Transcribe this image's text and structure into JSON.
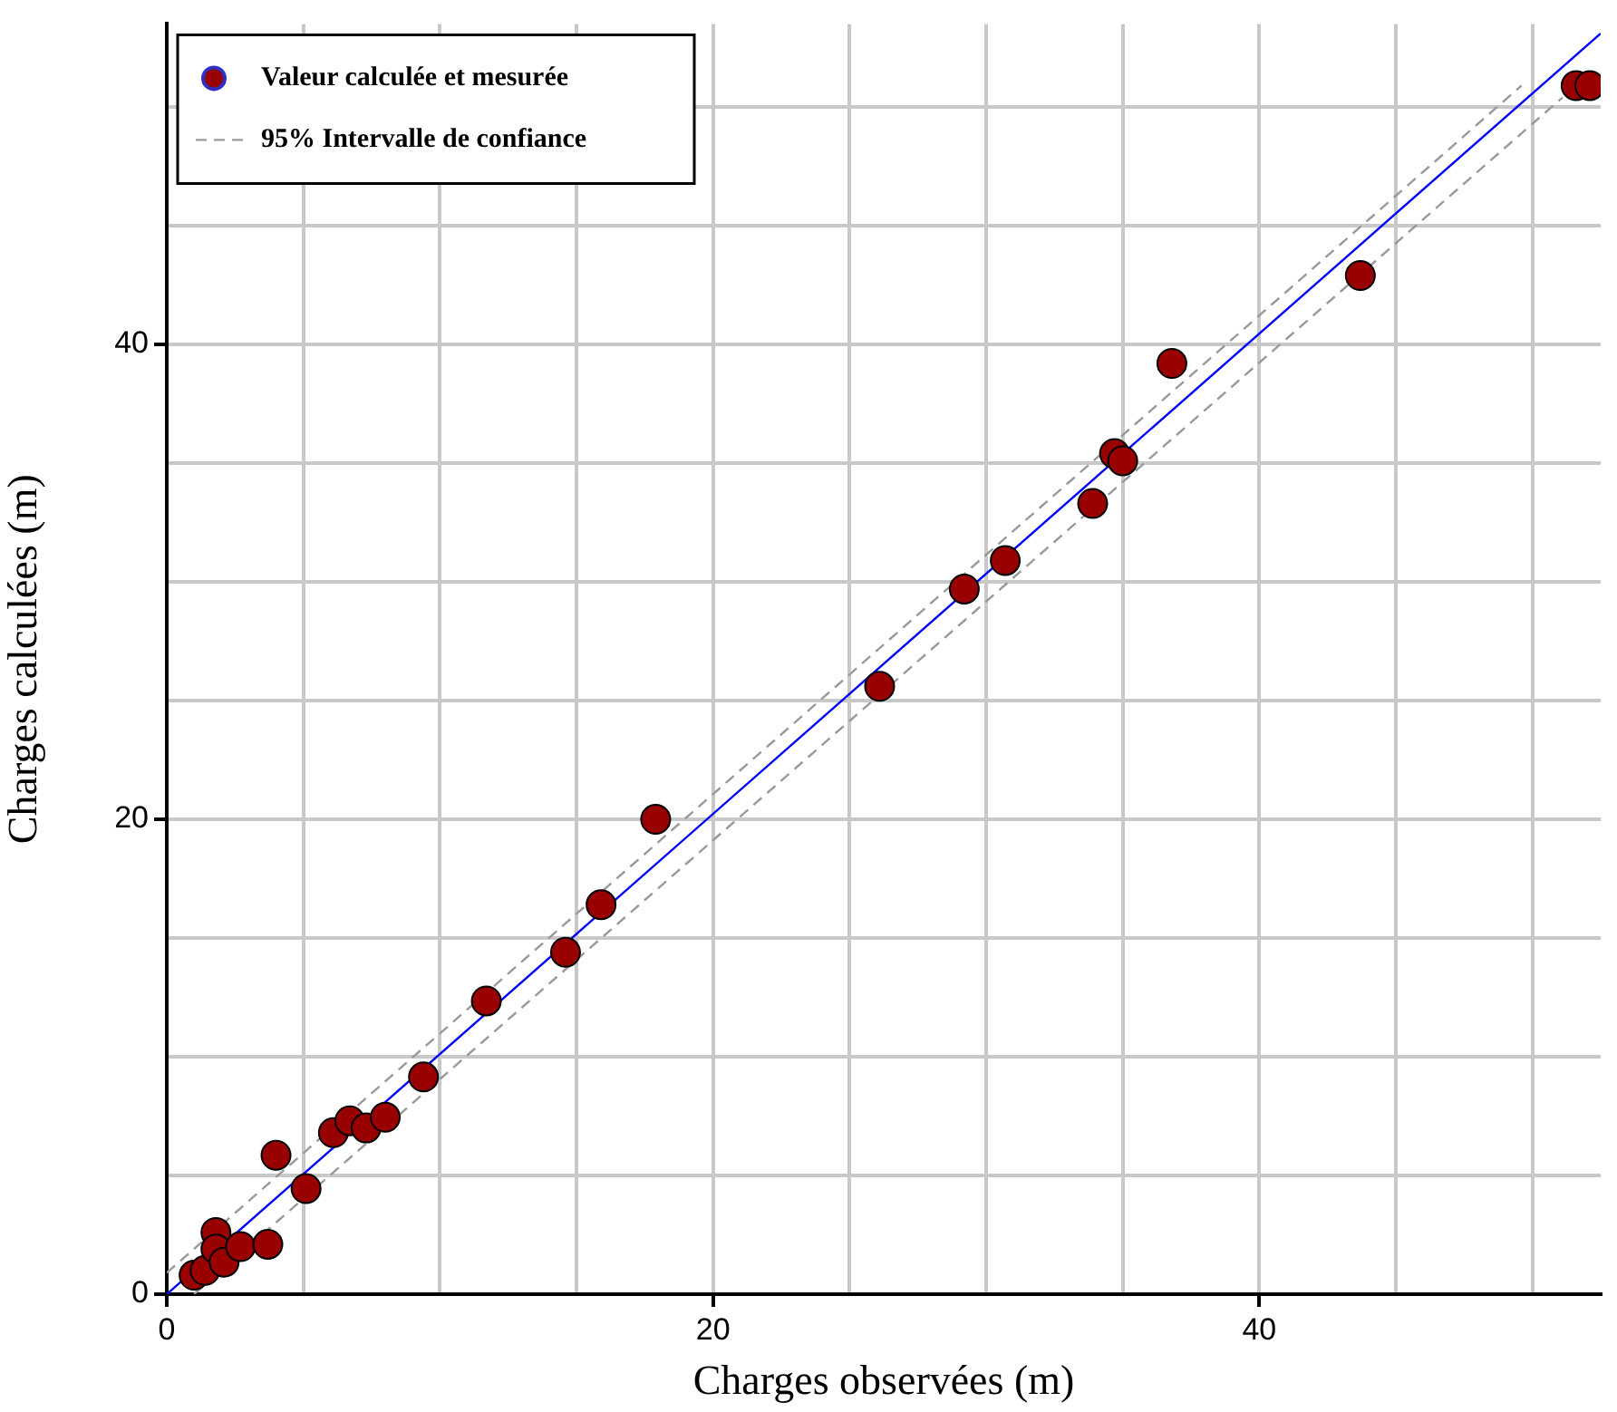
{
  "chart_data": {
    "type": "scatter",
    "xlabel": "Charges observées (m)",
    "ylabel": "Charges calculées (m)",
    "xlim": [
      0,
      52.5
    ],
    "ylim": [
      0,
      53.5
    ],
    "xticks": [
      0,
      {
        "value": 5,
        "label": null
      },
      {
        "value": 10,
        "label": null
      },
      {
        "value": 15,
        "label": null
      },
      20,
      {
        "value": 25,
        "label": null
      },
      {
        "value": 30,
        "label": null
      },
      {
        "value": 35,
        "label": null
      },
      40,
      {
        "value": 45,
        "label": null
      },
      {
        "value": 50,
        "label": null
      }
    ],
    "yticks": [
      0,
      {
        "value": 5,
        "label": null
      },
      {
        "value": 10,
        "label": null
      },
      {
        "value": 15,
        "label": null
      },
      20,
      {
        "value": 25,
        "label": null
      },
      {
        "value": 30,
        "label": null
      },
      {
        "value": 35,
        "label": null
      },
      40,
      {
        "value": 45,
        "label": null
      },
      {
        "value": 50,
        "label": null
      }
    ],
    "grid": true,
    "legend": "top left",
    "marker": "circle",
    "series": [
      {
        "name": "Valeur calculée et mesurée",
        "color": "#990000",
        "x": [
          1.0,
          1.4,
          1.8,
          1.8,
          2.1,
          2.7,
          3.7,
          4.0,
          5.1,
          6.1,
          6.7,
          7.3,
          8.0,
          9.4,
          11.7,
          14.6,
          15.9,
          17.9,
          26.1,
          29.2,
          30.7,
          33.9,
          34.7,
          35.0,
          36.8,
          43.7,
          51.6,
          52.1
        ],
        "values": [
          0.8,
          1.0,
          2.6,
          1.9,
          1.35,
          2.0,
          2.1,
          5.85,
          4.45,
          6.8,
          7.3,
          7.0,
          7.45,
          9.15,
          12.35,
          14.4,
          16.4,
          20.0,
          25.6,
          29.7,
          30.9,
          33.3,
          35.4,
          35.1,
          39.2,
          42.9,
          50.9,
          50.9
        ]
      },
      {
        "color": "#0000ff",
        "type": "line",
        "line_style": "solid",
        "marker": "none",
        "x": [
          0,
          52.5
        ],
        "values": [
          0,
          53.1
        ]
      },
      {
        "name": "95% Intervalle de confiance",
        "color": "#999999",
        "type": "line",
        "line_style": "dashed",
        "marker": "none",
        "x": [
          0,
          49.6
        ],
        "values": [
          0.9,
          50.9
        ]
      },
      {
        "color": "#999999",
        "type": "line",
        "line_style": "dashed",
        "marker": "none",
        "x": [
          1.0,
          51.1
        ],
        "values": [
          0,
          50.4
        ]
      }
    ]
  }
}
